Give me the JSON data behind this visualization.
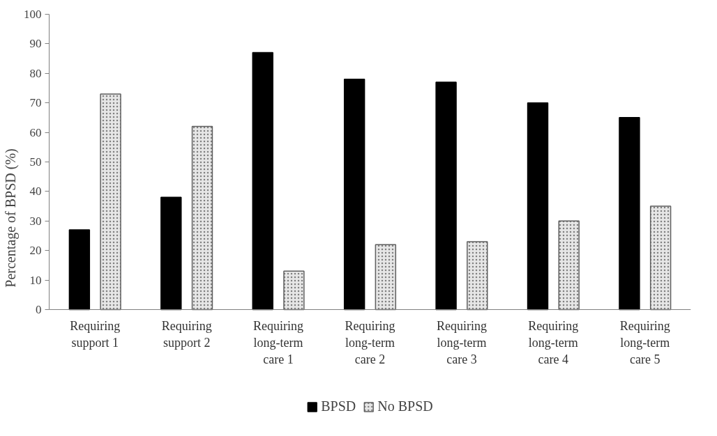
{
  "chart_data": {
    "type": "bar",
    "ylabel": "Percentage of BPSD (%)",
    "categories": [
      "Requiring\nsupport 1",
      "Requiring\nsupport 2",
      "Requiring\nlong-term\ncare 1",
      "Requiring\nlong-term\ncare 2",
      "Requiring\nlong-term\ncare 3",
      "Requiring\nlong-term\ncare 4",
      "Requiring\nlong-term\ncare 5"
    ],
    "series": [
      {
        "name": "BPSD",
        "color": "#000000",
        "values": [
          27,
          38,
          87,
          78,
          77,
          70,
          65
        ]
      },
      {
        "name": "No BPSD",
        "color": "#e6e6e6",
        "values": [
          73,
          62,
          13,
          22,
          23,
          30,
          35
        ]
      }
    ],
    "ylim": [
      0,
      100
    ],
    "yticks": [
      0,
      10,
      20,
      30,
      40,
      50,
      60,
      70,
      80,
      90,
      100
    ],
    "grid": false,
    "legend": "bottom"
  }
}
